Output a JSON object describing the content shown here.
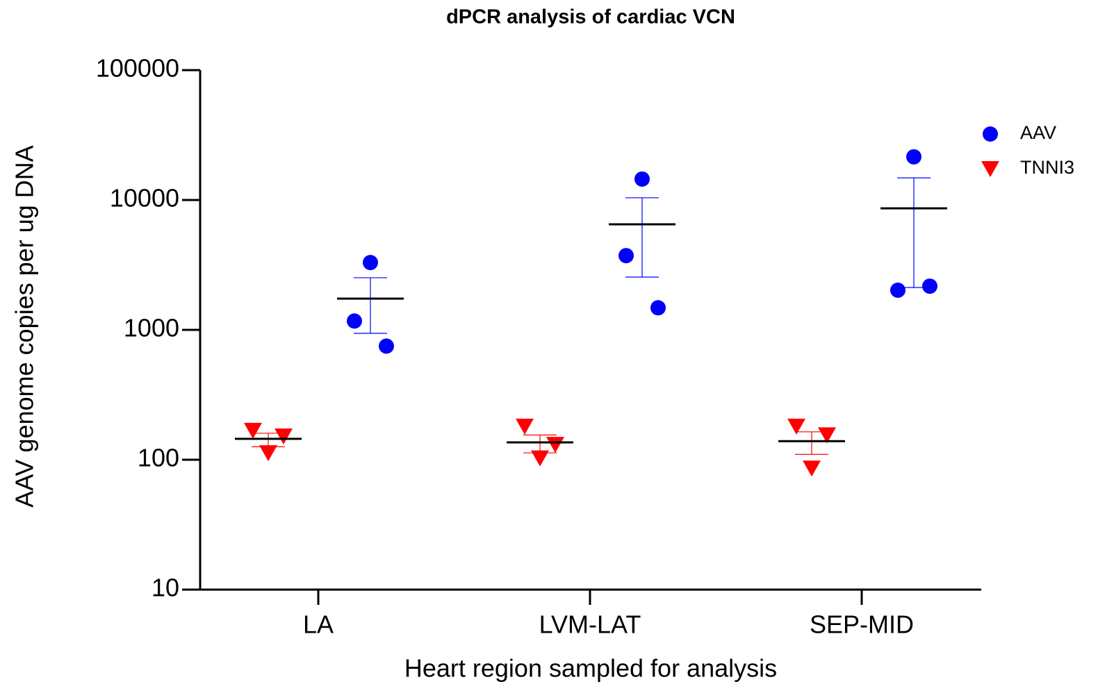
{
  "chart_data": {
    "type": "dot",
    "title": "dPCR analysis of cardiac VCN",
    "x_label": "Heart region sampled for analysis",
    "y_label": "AAV genome copies per ug DNA",
    "categories": [
      "LA",
      "LVM-LAT",
      "SEP-MID"
    ],
    "log_scale": true,
    "ylim": [
      10,
      100000
    ],
    "yticks": [
      10,
      100,
      1000,
      10000,
      100000
    ],
    "legend": "top-right",
    "series": [
      {
        "name": "AAV",
        "color": "#0000ff",
        "marker": "circle",
        "values": [
          [
            3300,
            1170,
            750
          ],
          [
            14500,
            3730,
            1480
          ],
          [
            21500,
            2020,
            2170
          ]
        ],
        "means": [
          1740,
          6500,
          8630
        ],
        "error_low": [
          940,
          2550,
          2120
        ],
        "error_high": [
          2520,
          10400,
          14800
        ]
      },
      {
        "name": "TNNI3",
        "color": "#ff0000",
        "marker": "triangle-down",
        "values": [
          [
            168,
            152,
            113
          ],
          [
            181,
            131,
            103
          ],
          [
            181,
            155,
            86
          ]
        ],
        "means": [
          145,
          136,
          139
        ],
        "error_low": [
          126,
          113,
          110
        ],
        "error_high": [
          160,
          155,
          164
        ]
      }
    ]
  }
}
